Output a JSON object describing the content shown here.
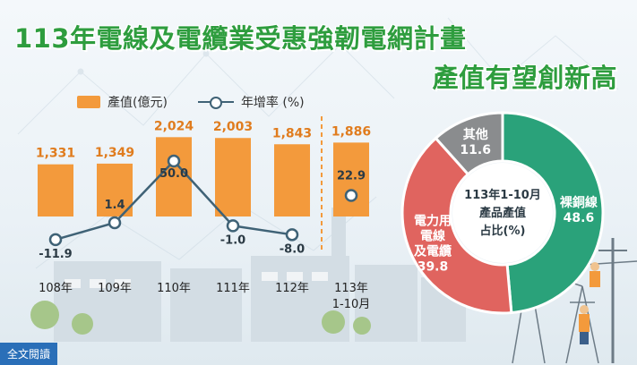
{
  "title": {
    "line1": "113年電線及電纜業受惠強韌電網計畫",
    "line2": "產值有望創新高"
  },
  "legend": {
    "bar_label": "產值(億元)",
    "line_label": "年增率 (%)"
  },
  "read_more_label": "全文閱讀",
  "colors": {
    "title": "#2e9d3e",
    "bar": "#f39a3c",
    "line": "#3f6276",
    "donut_green": "#2aa27a",
    "donut_red": "#e0645f",
    "donut_gray": "#8a8c8e",
    "badge": "#2a6fb8"
  },
  "chart_data": [
    {
      "type": "bar",
      "categories": [
        "108年",
        "109年",
        "110年",
        "111年",
        "112年",
        "113年 1-10月"
      ],
      "category_lines": [
        [
          "108年"
        ],
        [
          "109年"
        ],
        [
          "110年"
        ],
        [
          "111年"
        ],
        [
          "112年"
        ],
        [
          "113年",
          "1-10月"
        ]
      ],
      "series": [
        {
          "name": "產值(億元)",
          "values": [
            1331,
            1349,
            2024,
            2003,
            1843,
            1886
          ],
          "labels": [
            "1,331",
            "1,349",
            "2,024",
            "2,003",
            "1,843",
            "1,886"
          ]
        },
        {
          "name": "年增率 (%)",
          "type": "line",
          "values": [
            -11.9,
            1.4,
            50.0,
            -1.0,
            -8.0,
            22.9
          ],
          "labels": [
            "-11.9",
            "1.4",
            "50.0",
            "-1.0",
            "-8.0",
            "22.9"
          ]
        }
      ],
      "legend_position": "top-left"
    },
    {
      "type": "pie",
      "title_lines": [
        "113年1-10月",
        "產品產值",
        "占比(%)"
      ],
      "slices": [
        {
          "label_lines": [
            "裸銅線"
          ],
          "value": 48.6,
          "value_label": "48.6",
          "color": "#2aa27a"
        },
        {
          "label_lines": [
            "電力用",
            "電線",
            "及電纜"
          ],
          "value": 39.8,
          "value_label": "39.8",
          "color": "#e0645f"
        },
        {
          "label_lines": [
            "其他"
          ],
          "value": 11.6,
          "value_label": "11.6",
          "color": "#8a8c8e"
        }
      ]
    }
  ]
}
